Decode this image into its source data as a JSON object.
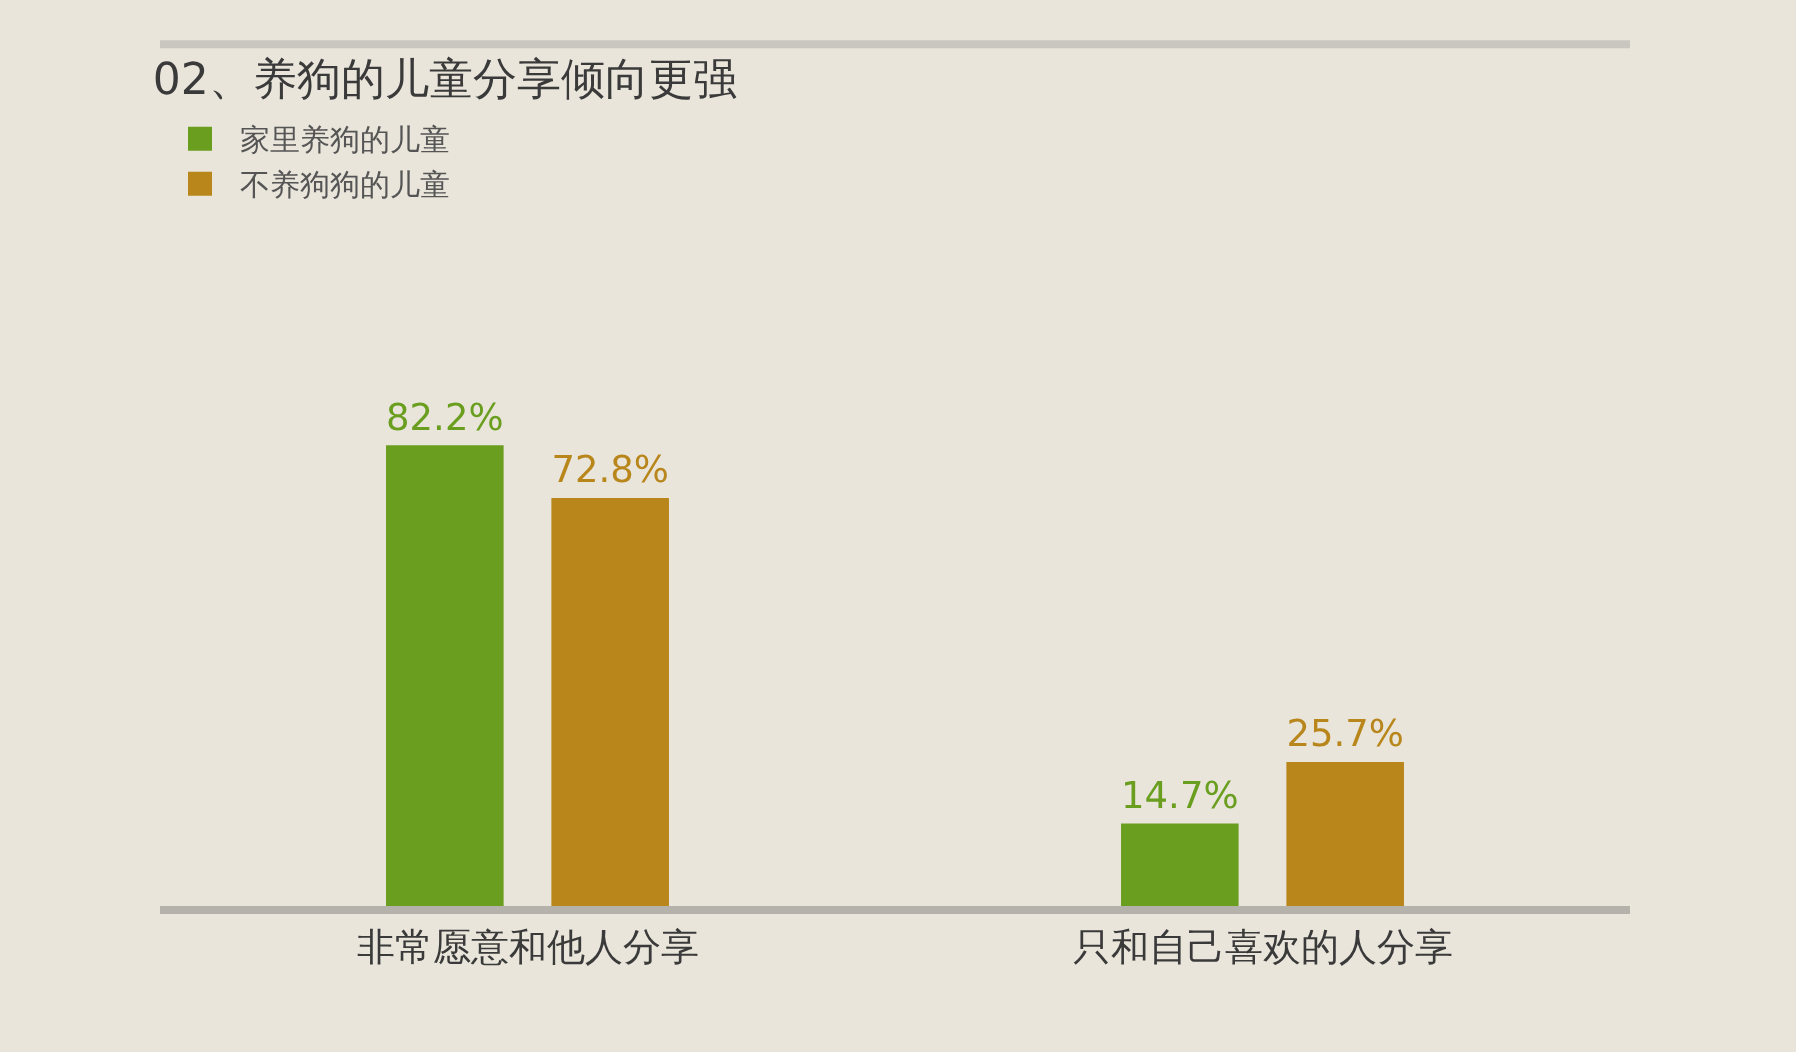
{
  "chart_data": {
    "type": "bar",
    "title": "02、养狗的儿童分享倾向更强",
    "categories": [
      "非常愿意和他人分享",
      "只和自己喜欢的人分享"
    ],
    "series": [
      {
        "name": "家里养狗的儿童",
        "color": "#6a9e1f",
        "values": [
          82.2,
          14.7
        ],
        "value_labels": [
          "82.2%",
          "14.7%"
        ]
      },
      {
        "name": "不养狗狗的儿童",
        "color": "#b8861b",
        "values": [
          72.8,
          25.7
        ],
        "value_labels": [
          "72.8%",
          "25.7%"
        ]
      }
    ],
    "legend": "top left"
  }
}
